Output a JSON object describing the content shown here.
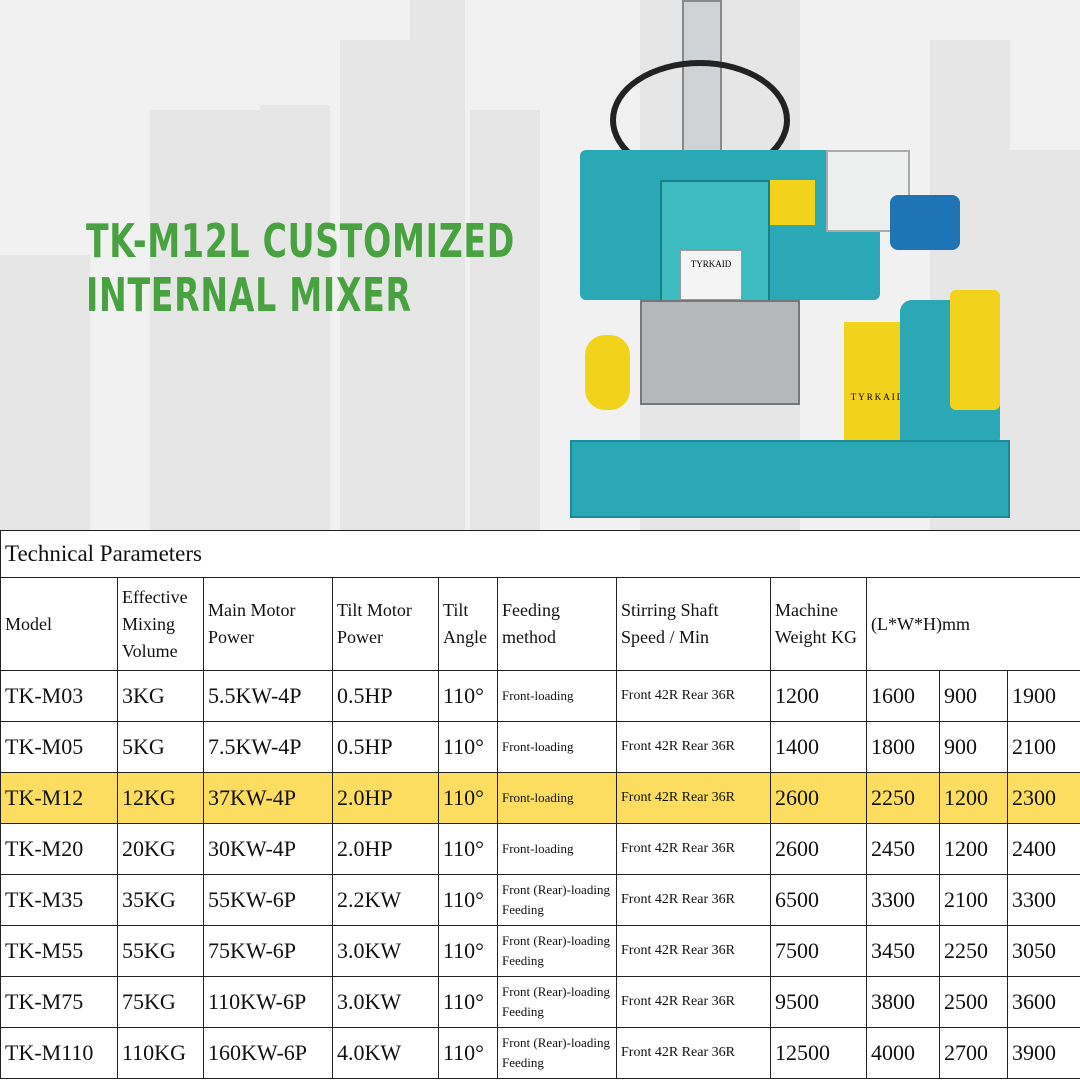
{
  "title": {
    "line1": "TK-M12L CUSTOMIZED",
    "line2": "INTERNAL MIXER"
  },
  "colors": {
    "title": "#47a23f",
    "highlight": "#fddd5f",
    "machine_body": "#2aa8b5",
    "machine_guard": "#f2d21b"
  },
  "machine_labels": {
    "plate": "TYRKAID",
    "guard": "TYRKAID"
  },
  "table": {
    "caption": "Technical Parameters",
    "headers": [
      "Model",
      "Effective Mixing Volume",
      "Main Motor Power",
      "Tilt Motor Power",
      "Tilt Angle",
      "Feeding method",
      "Stirring Shaft Speed / Min",
      "Machine Weight KG",
      "(L*W*H)mm"
    ],
    "highlighted_row": 2,
    "rows": [
      [
        "TK-M03",
        "3KG",
        "5.5KW-4P",
        "0.5HP",
        "110°",
        "Front-loading",
        "Front 42R Rear 36R",
        "1200",
        "1600",
        "900",
        "1900"
      ],
      [
        "TK-M05",
        "5KG",
        "7.5KW-4P",
        "0.5HP",
        "110°",
        "Front-loading",
        "Front 42R Rear 36R",
        "1400",
        "1800",
        "900",
        "2100"
      ],
      [
        "TK-M12",
        "12KG",
        "37KW-4P",
        "2.0HP",
        "110°",
        "Front-loading",
        "Front 42R Rear 36R",
        "2600",
        "2250",
        "1200",
        "2300"
      ],
      [
        "TK-M20",
        "20KG",
        "30KW-4P",
        "2.0HP",
        "110°",
        "Front-loading",
        "Front 42R Rear 36R",
        "2600",
        "2450",
        "1200",
        "2400"
      ],
      [
        "TK-M35",
        "35KG",
        "55KW-6P",
        "2.2KW",
        "110°",
        "Front (Rear)-loading Feeding",
        "Front 42R Rear 36R",
        "6500",
        "3300",
        "2100",
        "3300"
      ],
      [
        "TK-M55",
        "55KG",
        "75KW-6P",
        "3.0KW",
        "110°",
        "Front (Rear)-loading Feeding",
        "Front 42R Rear 36R",
        "7500",
        "3450",
        "2250",
        "3050"
      ],
      [
        "TK-M75",
        "75KG",
        "110KW-6P",
        "3.0KW",
        "110°",
        "Front (Rear)-loading Feeding",
        "Front 42R Rear 36R",
        "9500",
        "3800",
        "2500",
        "3600"
      ],
      [
        "TK-M110",
        "110KG",
        "160KW-6P",
        "4.0KW",
        "110°",
        "Front (Rear)-loading Feeding",
        "Front 42R Rear 36R",
        "12500",
        "4000",
        "2700",
        "3900"
      ]
    ]
  }
}
